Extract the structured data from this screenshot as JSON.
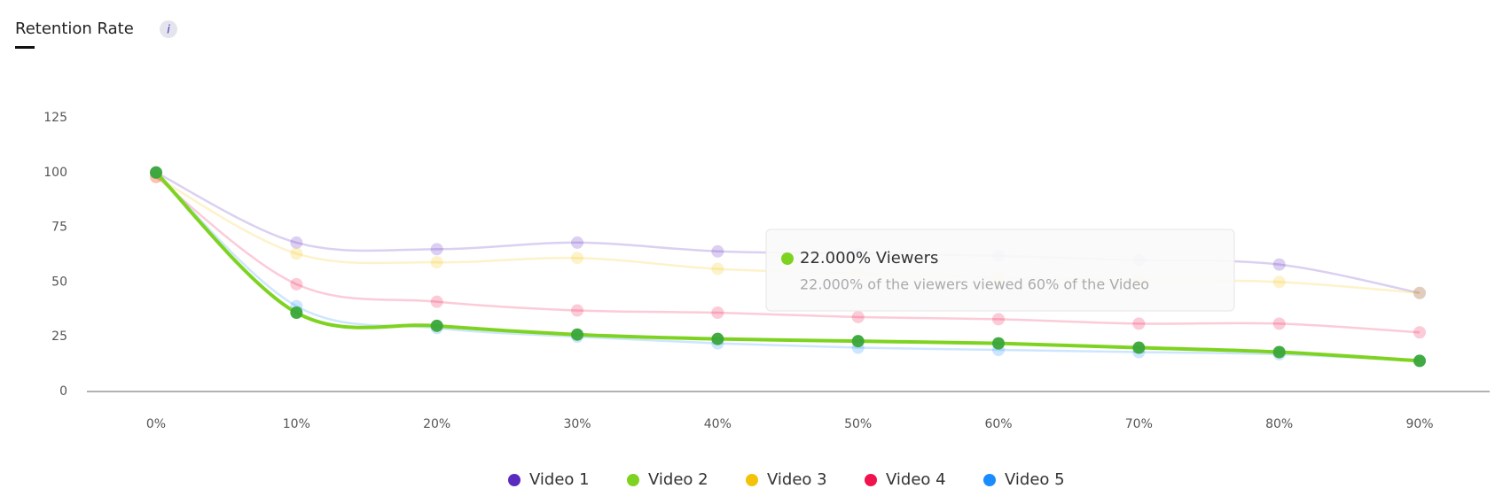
{
  "header": {
    "title": "Retention Rate",
    "info": "i"
  },
  "chart_data": {
    "type": "line",
    "smooth": true,
    "categories": [
      "0%",
      "10%",
      "20%",
      "30%",
      "40%",
      "50%",
      "60%",
      "70%",
      "80%",
      "90%"
    ],
    "series": [
      {
        "name": "Video 1",
        "color": "#5b2bbf",
        "values": [
          100,
          68,
          65,
          68,
          64,
          63,
          62,
          60,
          58,
          45
        ]
      },
      {
        "name": "Video 2",
        "color": "#7ed321",
        "values": [
          100,
          36,
          30,
          26,
          24,
          23,
          22,
          20,
          18,
          14
        ]
      },
      {
        "name": "Video 3",
        "color": "#f5c20b",
        "values": [
          98,
          63,
          59,
          61,
          56,
          54,
          52,
          51,
          50,
          45
        ]
      },
      {
        "name": "Video 4",
        "color": "#f0134d",
        "values": [
          98,
          49,
          41,
          37,
          36,
          34,
          33,
          31,
          31,
          27
        ]
      },
      {
        "name": "Video 5",
        "color": "#1a8cff",
        "values": [
          100,
          39,
          29,
          25,
          22,
          20,
          19,
          18,
          17,
          14
        ]
      }
    ],
    "highlighted": "Video 2",
    "ylim": [
      0,
      125
    ],
    "yticks": [
      0,
      25,
      50,
      75,
      100,
      125
    ],
    "tooltip": {
      "title": "22.000% Viewers",
      "text": "22.000% of the viewers viewed 60% of the Video"
    }
  }
}
